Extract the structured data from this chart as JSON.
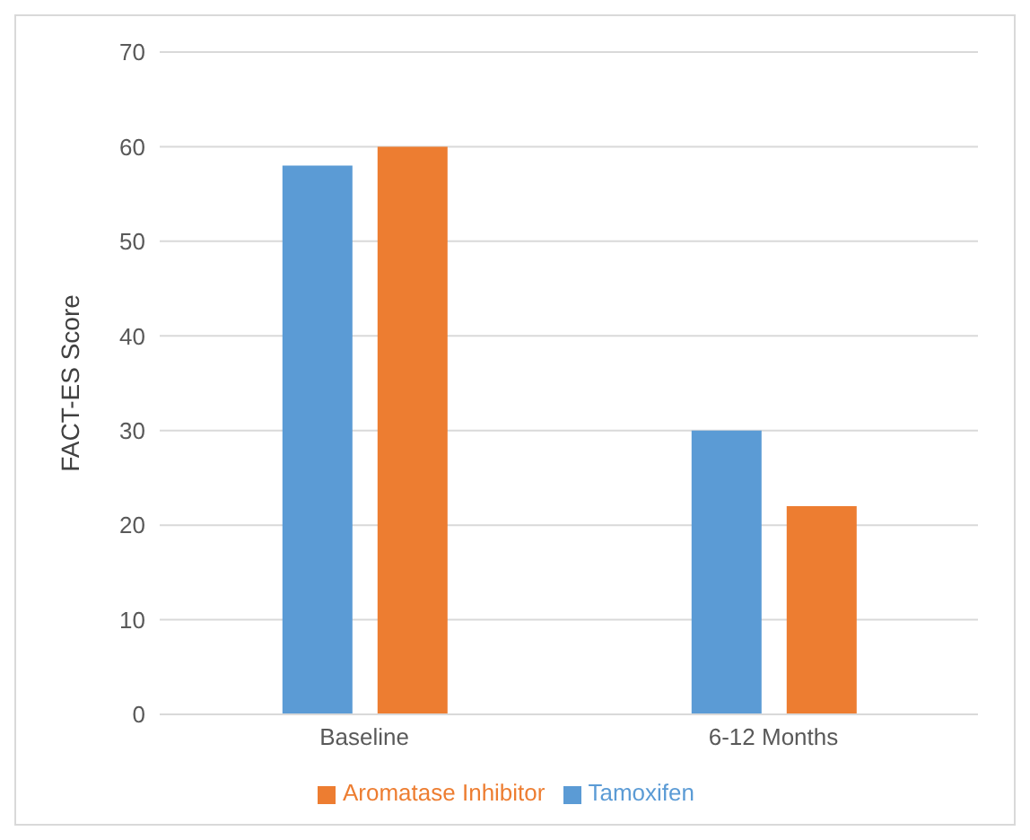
{
  "chart_data": {
    "type": "bar",
    "ylabel": "FACT-ES Score",
    "categories": [
      "Baseline",
      "6-12 Months"
    ],
    "series": [
      {
        "name": "Tamoxifen",
        "color": "#5b9bd5",
        "values": [
          58,
          30
        ]
      },
      {
        "name": "Aromatase Inhibitor",
        "color": "#ed7d31",
        "values": [
          60,
          22
        ]
      }
    ],
    "ylim": [
      0,
      70
    ],
    "yticks": [
      0,
      10,
      20,
      30,
      40,
      50,
      60,
      70
    ],
    "grid": "y",
    "legend": "bottom"
  }
}
